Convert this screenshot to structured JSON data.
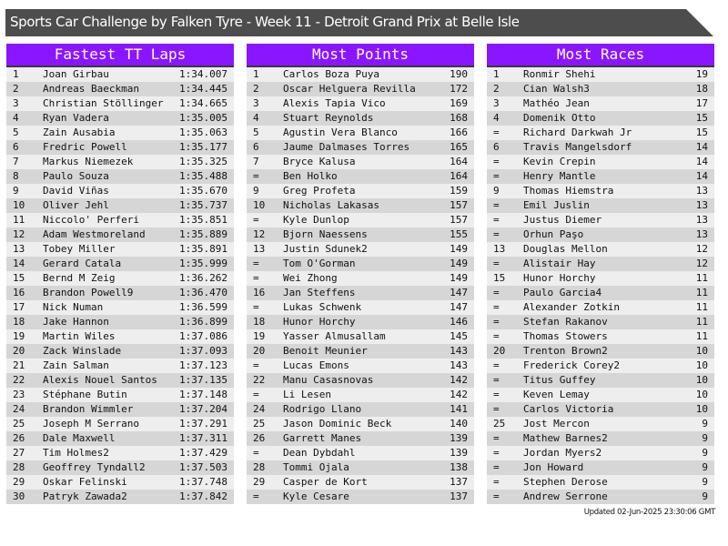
{
  "title": "Sports Car Challenge by Falken Tyre - Week 11 - Detroit Grand Prix at Belle Isle",
  "colors": {
    "header": "#8a16ff",
    "titlebar": "#4d4d4d",
    "row_light": "#eeeeee",
    "row_dark": "#d6d6d6"
  },
  "tables": [
    {
      "title": "Fastest TT Laps",
      "rows": [
        [
          "1",
          "Joan Girbau",
          "1:34.007"
        ],
        [
          "2",
          "Andreas Baeckman",
          "1:34.445"
        ],
        [
          "3",
          "Christian Stöllinger",
          "1:34.665"
        ],
        [
          "4",
          "Ryan Vadera",
          "1:35.005"
        ],
        [
          "5",
          "Zain Ausabia",
          "1:35.063"
        ],
        [
          "6",
          "Fredric Powell",
          "1:35.177"
        ],
        [
          "7",
          "Markus Niemezek",
          "1:35.325"
        ],
        [
          "8",
          "Paulo Souza",
          "1:35.488"
        ],
        [
          "9",
          "David Viñas",
          "1:35.670"
        ],
        [
          "10",
          "Oliver Jehl",
          "1:35.737"
        ],
        [
          "11",
          "Niccolo' Perferi",
          "1:35.851"
        ],
        [
          "12",
          "Adam Westmoreland",
          "1:35.889"
        ],
        [
          "13",
          "Tobey Miller",
          "1:35.891"
        ],
        [
          "14",
          "Gerard Catala",
          "1:35.999"
        ],
        [
          "15",
          "Bernd M Zeig",
          "1:36.262"
        ],
        [
          "16",
          "Brandon Powell9",
          "1:36.470"
        ],
        [
          "17",
          "Nick Numan",
          "1:36.599"
        ],
        [
          "18",
          "Jake Hannon",
          "1:36.899"
        ],
        [
          "19",
          "Martin Wiles",
          "1:37.086"
        ],
        [
          "20",
          "Zack Winslade",
          "1:37.093"
        ],
        [
          "21",
          "Zain Salman",
          "1:37.123"
        ],
        [
          "22",
          "Alexis Nouel Santos",
          "1:37.135"
        ],
        [
          "23",
          "Stéphane Butin",
          "1:37.148"
        ],
        [
          "24",
          "Brandon Wimmler",
          "1:37.204"
        ],
        [
          "25",
          "Joseph M Serrano",
          "1:37.291"
        ],
        [
          "26",
          "Dale Maxwell",
          "1:37.311"
        ],
        [
          "27",
          "Tim Holmes2",
          "1:37.429"
        ],
        [
          "28",
          "Geoffrey Tyndall2",
          "1:37.503"
        ],
        [
          "29",
          "Oskar Felinski",
          "1:37.748"
        ],
        [
          "30",
          "Patryk Zawada2",
          "1:37.842"
        ]
      ]
    },
    {
      "title": "Most Points",
      "rows": [
        [
          "1",
          "Carlos Boza Puya",
          "190"
        ],
        [
          "2",
          "Oscar Helguera Revilla",
          "172"
        ],
        [
          "3",
          "Alexis Tapia Vico",
          "169"
        ],
        [
          "4",
          "Stuart Reynolds",
          "168"
        ],
        [
          "5",
          "Agustin Vera Blanco",
          "166"
        ],
        [
          "6",
          "Jaume Dalmases Torres",
          "165"
        ],
        [
          "7",
          "Bryce Kalusa",
          "164"
        ],
        [
          "=",
          "Ben Holko",
          "164"
        ],
        [
          "9",
          "Greg Profeta",
          "159"
        ],
        [
          "10",
          "Nicholas Lakasas",
          "157"
        ],
        [
          "=",
          "Kyle Dunlop",
          "157"
        ],
        [
          "12",
          "Bjorn Naessens",
          "155"
        ],
        [
          "13",
          "Justin Sdunek2",
          "149"
        ],
        [
          "=",
          "Tom O'Gorman",
          "149"
        ],
        [
          "=",
          "Wei Zhong",
          "149"
        ],
        [
          "16",
          "Jan Steffens",
          "147"
        ],
        [
          "=",
          "Lukas Schwenk",
          "147"
        ],
        [
          "18",
          "Hunor Horchy",
          "146"
        ],
        [
          "19",
          "Yasser Almusallam",
          "145"
        ],
        [
          "20",
          "Benoit Meunier",
          "143"
        ],
        [
          "=",
          "Lucas Emons",
          "143"
        ],
        [
          "22",
          "Manu Casasnovas",
          "142"
        ],
        [
          "=",
          "Li Lesen",
          "142"
        ],
        [
          "24",
          "Rodrigo Llano",
          "141"
        ],
        [
          "25",
          "Jason Dominic Beck",
          "140"
        ],
        [
          "26",
          "Garrett Manes",
          "139"
        ],
        [
          "=",
          "Dean Dybdahl",
          "139"
        ],
        [
          "28",
          "Tommi Ojala",
          "138"
        ],
        [
          "29",
          "Casper de Kort",
          "137"
        ],
        [
          "=",
          "Kyle Cesare",
          "137"
        ]
      ]
    },
    {
      "title": "Most Races",
      "rows": [
        [
          "1",
          "Ronmir Shehi",
          "19"
        ],
        [
          "2",
          "Cian Walsh3",
          "18"
        ],
        [
          "3",
          "Mathéo Jean",
          "17"
        ],
        [
          "4",
          "Domenik Otto",
          "15"
        ],
        [
          "=",
          "Richard Darkwah Jr",
          "15"
        ],
        [
          "6",
          "Travis Mangelsdorf",
          "14"
        ],
        [
          "=",
          "Kevin Crepin",
          "14"
        ],
        [
          "=",
          "Henry Mantle",
          "14"
        ],
        [
          "9",
          "Thomas Hiemstra",
          "13"
        ],
        [
          "=",
          "Emil Juslin",
          "13"
        ],
        [
          "=",
          "Justus Diemer",
          "13"
        ],
        [
          "=",
          "Orhun Paşo",
          "13"
        ],
        [
          "13",
          "Douglas Mellon",
          "12"
        ],
        [
          "=",
          "Alistair Hay",
          "12"
        ],
        [
          "15",
          "Hunor Horchy",
          "11"
        ],
        [
          "=",
          "Paulo Garcia4",
          "11"
        ],
        [
          "=",
          "Alexander Zotkin",
          "11"
        ],
        [
          "=",
          "Stefan Rakanov",
          "11"
        ],
        [
          "=",
          "Thomas Stowers",
          "11"
        ],
        [
          "20",
          "Trenton Brown2",
          "10"
        ],
        [
          "=",
          "Frederick Corey2",
          "10"
        ],
        [
          "=",
          "Titus Guffey",
          "10"
        ],
        [
          "=",
          "Keven Lemay",
          "10"
        ],
        [
          "=",
          "Carlos Victoria",
          "10"
        ],
        [
          "25",
          "Jost Mercon",
          "9"
        ],
        [
          "=",
          "Mathew Barnes2",
          "9"
        ],
        [
          "=",
          "Jordan Myers2",
          "9"
        ],
        [
          "=",
          "Jon Howard",
          "9"
        ],
        [
          "=",
          "Stephen Derose",
          "9"
        ],
        [
          "=",
          "Andrew Serrone",
          "9"
        ]
      ]
    }
  ],
  "updated": "Updated 02-Jun-2025 23:30:06 GMT"
}
